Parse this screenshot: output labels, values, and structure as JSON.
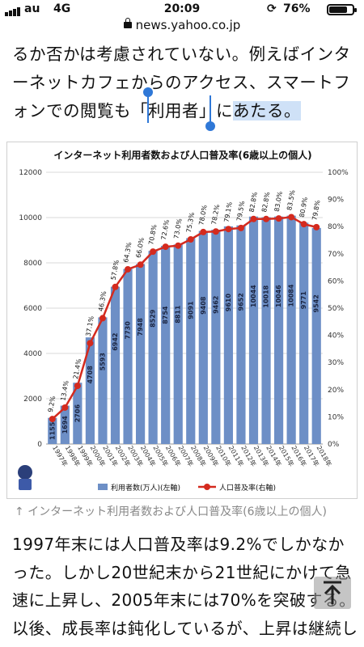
{
  "status": {
    "carrier": "au",
    "network": "4G",
    "time": "20:09",
    "battery": "76%"
  },
  "browser": {
    "url": "news.yahoo.co.jp"
  },
  "article": {
    "paragraph_top_prefix": "るか否かは考慮されていない。例えばインターネットカフェからのアクセス、スマートフォンでの閲覧も「利用者」に",
    "paragraph_top_selected": "あたる。",
    "caption": "↑ インターネット利用者数および人口普及率(6歳以上の個人)",
    "paragraph_bottom": "1997年末には人口普及率は9.2%でしかなかった。しかし20世紀末から21世紀にかけて急速に上昇し、2005年末には70%を突破する。以後、成長率は鈍化しているが、上昇は継続している。一方"
  },
  "chart_data": {
    "type": "bar",
    "title": "インターネット利用者数および人口普及率(6歳以上の個人)",
    "categories": [
      "1997年",
      "1998年",
      "1999年",
      "2000年",
      "2001年",
      "2002年",
      "2003年",
      "2004年",
      "2005年",
      "2006年",
      "2007年",
      "2008年",
      "2009年",
      "2010年",
      "2011年",
      "2012年",
      "2013年",
      "2014年",
      "2015年",
      "2016年",
      "2017年",
      "2018年"
    ],
    "series": [
      {
        "name": "利用者数(万人)(左軸)",
        "axis": "left",
        "kind": "bar",
        "values": [
          1155,
          1694,
          2706,
          4708,
          5593,
          6942,
          7730,
          7948,
          8529,
          8754,
          8811,
          9091,
          9408,
          9462,
          9610,
          9652,
          10044,
          10018,
          10046,
          10084,
          9771,
          9542
        ],
        "labels": [
          "1155",
          "1694",
          "2706",
          "4708",
          "5593",
          "6942",
          "7730",
          "7948",
          "8529",
          "8754",
          "8811",
          "9091",
          "9408",
          "9462",
          "9610",
          "9652",
          "10044",
          "10018",
          "10046",
          "10084",
          "9771",
          "9542"
        ]
      },
      {
        "name": "人口普及率(右軸)",
        "axis": "right",
        "kind": "line",
        "values": [
          9.2,
          13.4,
          21.4,
          37.1,
          46.3,
          57.8,
          64.3,
          66.0,
          70.8,
          72.6,
          73.0,
          75.3,
          78.0,
          78.2,
          79.1,
          79.5,
          82.8,
          82.8,
          83.0,
          83.5,
          80.9,
          79.8
        ],
        "labels": [
          "9.2%",
          "13.4%",
          "21.4%",
          "37.1%",
          "46.3%",
          "57.8%",
          "64.3%",
          "66.0%",
          "70.8%",
          "72.6%",
          "73.0%",
          "75.3%",
          "78.0%",
          "78.2%",
          "79.1%",
          "79.5%",
          "82.8%",
          "82.8%",
          "83.0%",
          "83.5%",
          "80.9%",
          "79.8%"
        ]
      }
    ],
    "y_left": {
      "min": 0,
      "max": 12000,
      "ticks": [
        "0",
        "2000",
        "4000",
        "6000",
        "8000",
        "10000",
        "12000"
      ]
    },
    "y_right": {
      "min": 0,
      "max": 100,
      "ticks": [
        "0%",
        "10%",
        "20%",
        "30%",
        "40%",
        "50%",
        "60%",
        "70%",
        "80%",
        "90%",
        "100%"
      ]
    },
    "grid": true,
    "legend": "bottom",
    "colors": {
      "bar": "#6d8fc6",
      "bar_alt": "#a9c1e3",
      "line": "#d42a1e",
      "marker": "#d42a1e"
    }
  }
}
